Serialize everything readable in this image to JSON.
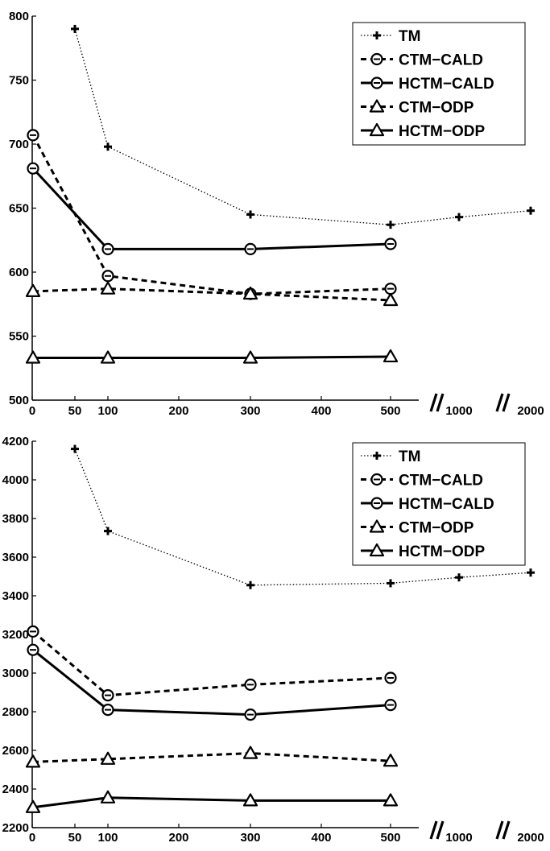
{
  "chart_data": [
    {
      "type": "line",
      "x_ticks": [
        "0",
        "50",
        "100",
        "200",
        "300",
        "400",
        "500",
        "1000",
        "2000"
      ],
      "y_ticks": [
        "500",
        "550",
        "600",
        "650",
        "700",
        "750",
        "800"
      ],
      "ylim": [
        500,
        800
      ],
      "x_axis_break": true,
      "legend": "top-right",
      "series": [
        {
          "name": "TM",
          "style": "dotted",
          "marker": "plus",
          "x": [
            50,
            100,
            300,
            500,
            1000,
            2000
          ],
          "y": [
            790,
            698,
            645,
            637,
            643,
            648
          ]
        },
        {
          "name": "CTM−CALD",
          "style": "dashed",
          "marker": "circle",
          "x": [
            10,
            100,
            300,
            500
          ],
          "y": [
            707,
            597,
            583,
            587
          ]
        },
        {
          "name": "HCTM−CALD",
          "style": "solid",
          "marker": "circle",
          "x": [
            10,
            100,
            300,
            500
          ],
          "y": [
            681,
            618,
            618,
            622
          ]
        },
        {
          "name": "CTM−ODP",
          "style": "dashed",
          "marker": "triangle",
          "x": [
            10,
            100,
            300,
            500
          ],
          "y": [
            585,
            587,
            583,
            578
          ]
        },
        {
          "name": "HCTM−ODP",
          "style": "solid",
          "marker": "triangle",
          "x": [
            10,
            100,
            300,
            500
          ],
          "y": [
            533,
            533,
            533,
            534
          ]
        }
      ]
    },
    {
      "type": "line",
      "x_ticks": [
        "0",
        "50",
        "100",
        "200",
        "300",
        "400",
        "500",
        "1000",
        "2000"
      ],
      "y_ticks": [
        "2200",
        "2400",
        "2600",
        "2800",
        "3000",
        "3200",
        "3400",
        "3600",
        "3800",
        "4000",
        "4200"
      ],
      "ylim": [
        2200,
        4200
      ],
      "x_axis_break": true,
      "legend": "top-right",
      "series": [
        {
          "name": "TM",
          "style": "dotted",
          "marker": "plus",
          "x": [
            50,
            100,
            300,
            500,
            1000,
            2000
          ],
          "y": [
            4160,
            3735,
            3455,
            3465,
            3495,
            3520
          ]
        },
        {
          "name": "CTM−CALD",
          "style": "dashed",
          "marker": "circle",
          "x": [
            10,
            100,
            300,
            500
          ],
          "y": [
            3215,
            2885,
            2940,
            2975
          ]
        },
        {
          "name": "HCTM−CALD",
          "style": "solid",
          "marker": "circle",
          "x": [
            10,
            100,
            300,
            500
          ],
          "y": [
            3120,
            2810,
            2785,
            2835
          ]
        },
        {
          "name": "CTM−ODP",
          "style": "dashed",
          "marker": "triangle",
          "x": [
            10,
            100,
            300,
            500
          ],
          "y": [
            2540,
            2555,
            2585,
            2545
          ]
        },
        {
          "name": "HCTM−ODP",
          "style": "solid",
          "marker": "triangle",
          "x": [
            10,
            100,
            300,
            500
          ],
          "y": [
            2305,
            2355,
            2340,
            2340
          ]
        }
      ]
    }
  ]
}
